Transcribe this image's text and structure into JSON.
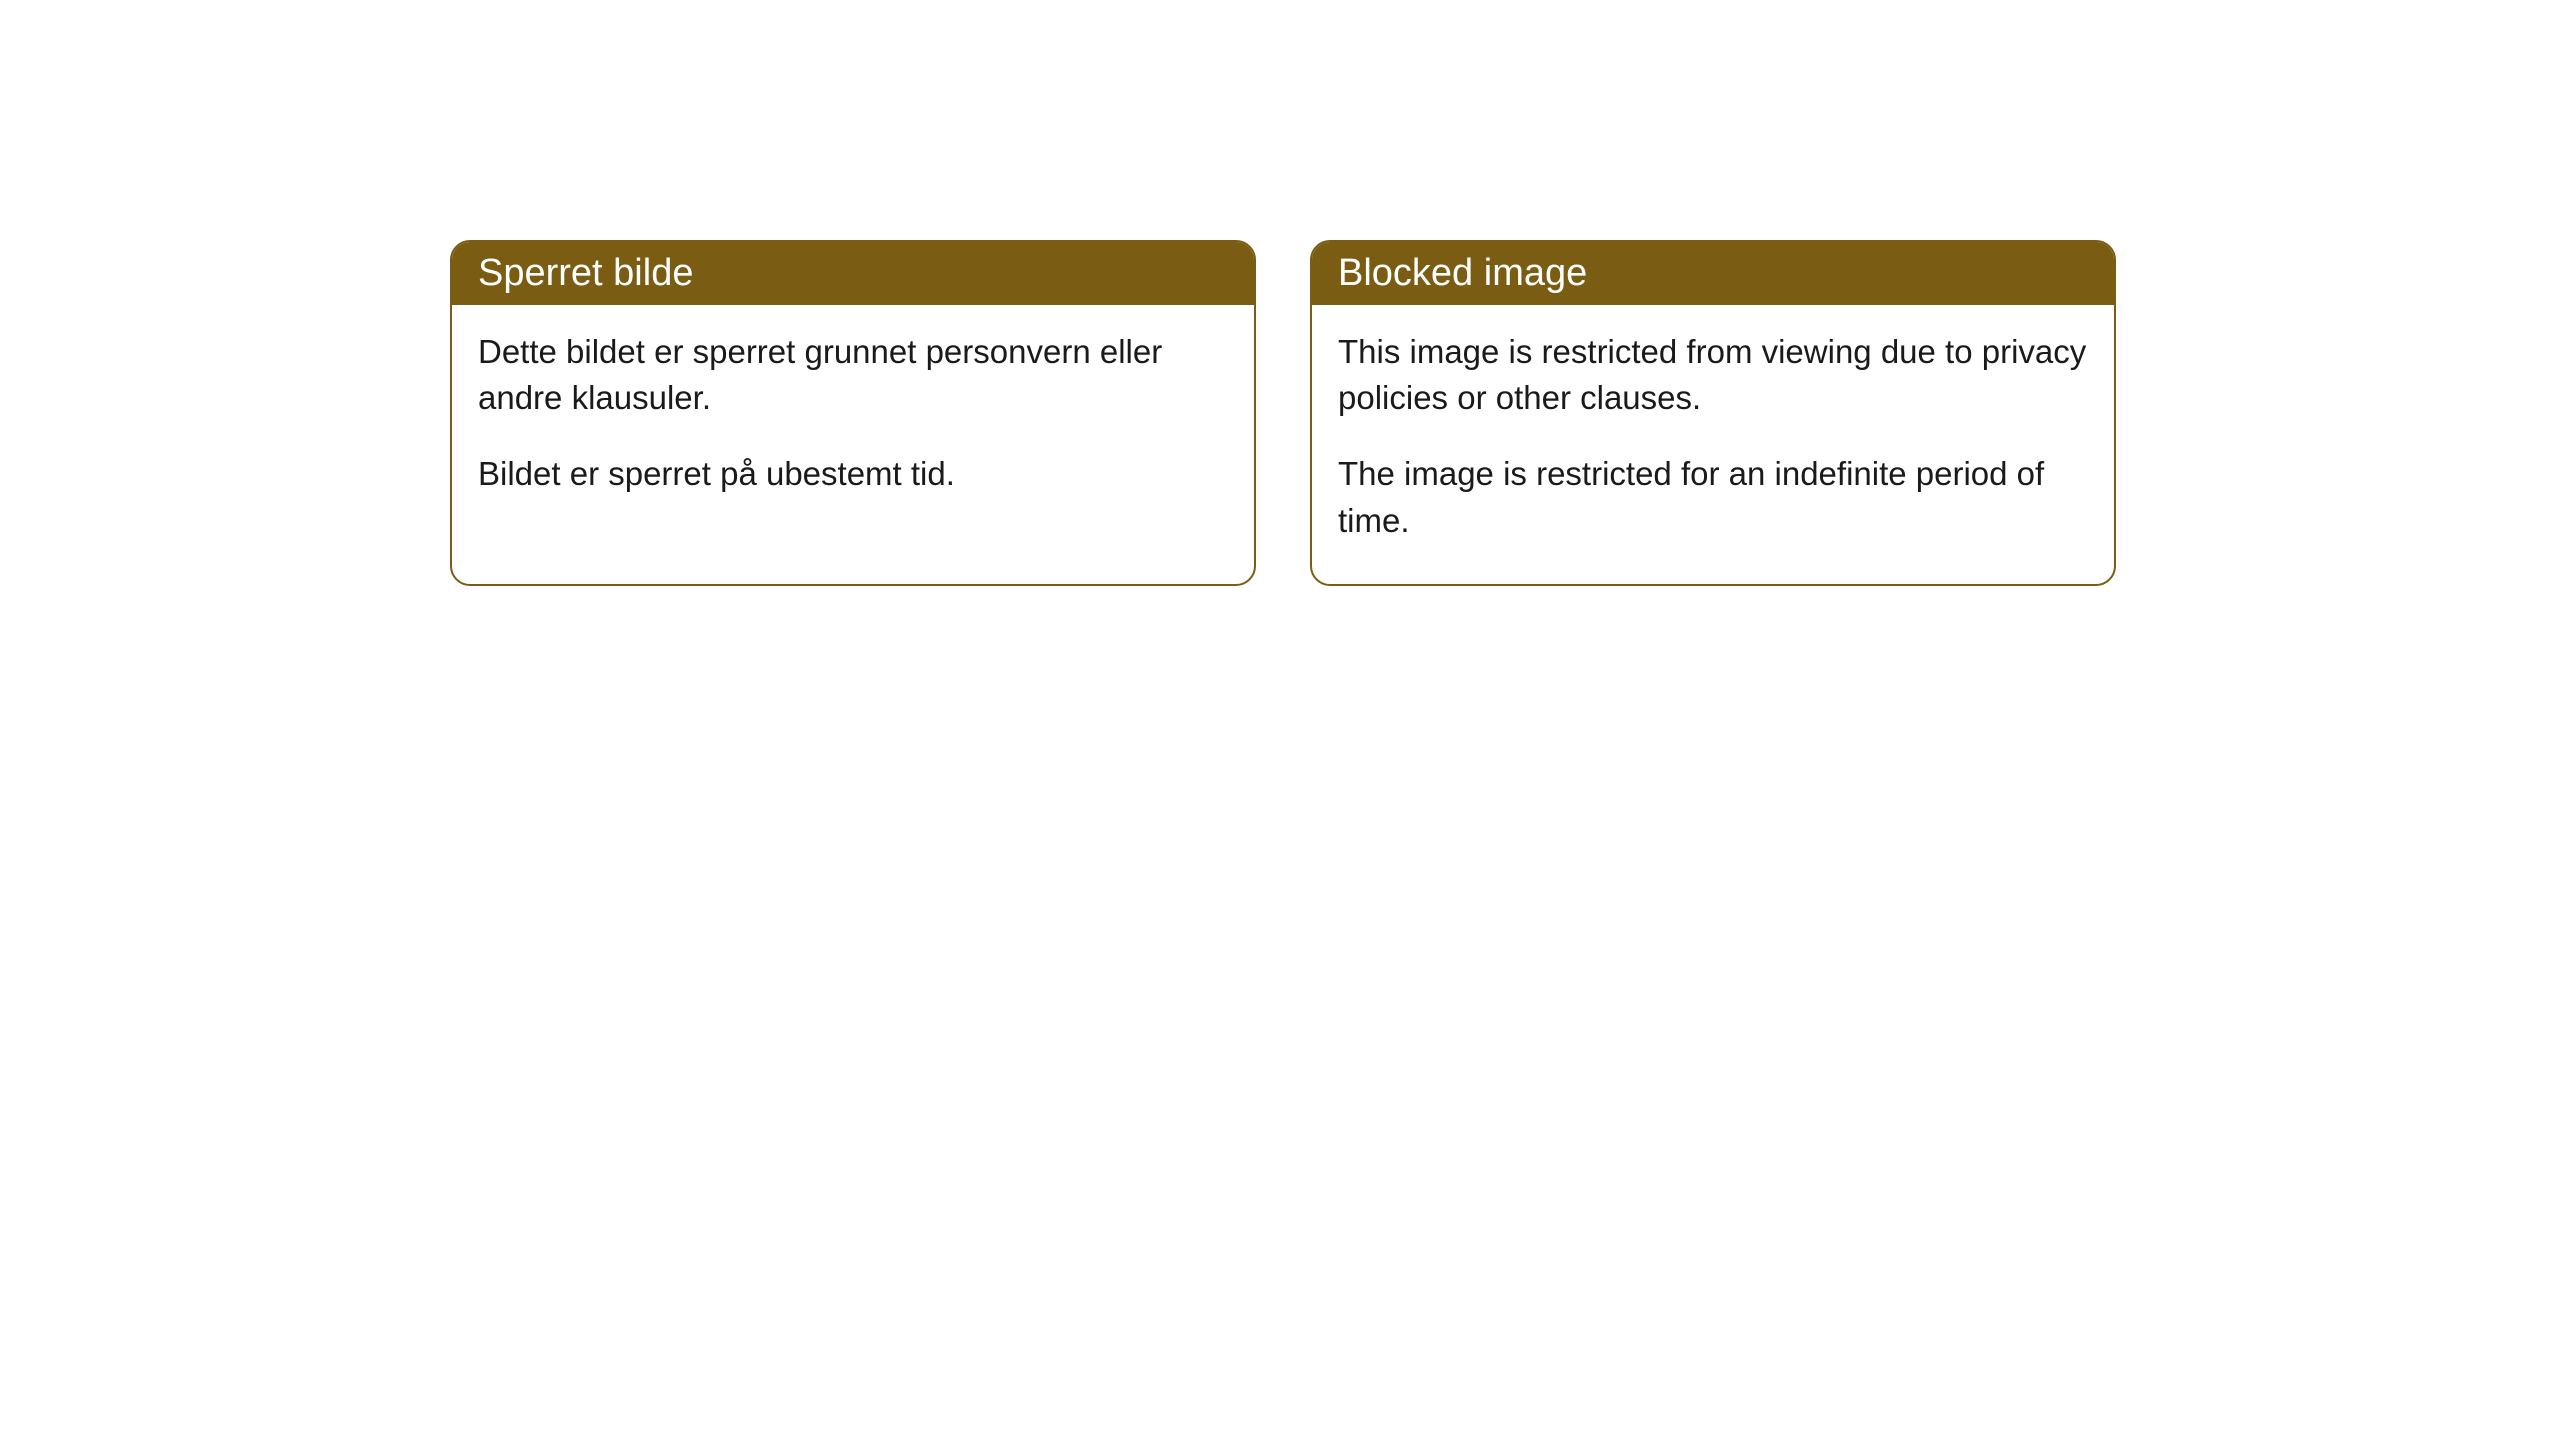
{
  "cards": [
    {
      "title": "Sperret bilde",
      "paragraph1": "Dette bildet er sperret grunnet personvern eller andre klausuler.",
      "paragraph2": "Bildet er sperret på ubestemt tid."
    },
    {
      "title": "Blocked image",
      "paragraph1": "This image is restricted from viewing due to privacy policies or other clauses.",
      "paragraph2": "The image is restricted for an indefinite period of time."
    }
  ],
  "style": {
    "header_bg": "#7a5c12",
    "border_color": "#7a5c12",
    "header_text_color": "#ffffff",
    "body_text_color": "#1a1a1a",
    "border_radius": "20px",
    "header_fontsize": "38px",
    "body_fontsize": "33px"
  }
}
